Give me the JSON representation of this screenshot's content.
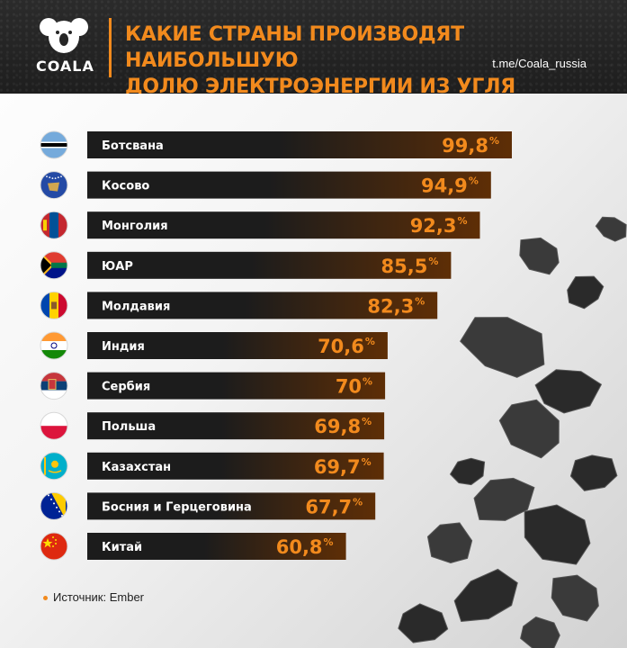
{
  "header": {
    "logo_text": "COALA",
    "title_line1": "КАКИЕ СТРАНЫ ПРОИЗВОДЯТ НАИБОЛЬШУЮ",
    "title_line2": "ДОЛЮ ЭЛЕКТРОЭНЕРГИИ ИЗ УГЛЯ",
    "handle": "t.me/Coala_russia"
  },
  "footer": {
    "source": "Источник: Ember"
  },
  "colors": {
    "accent": "#f28a1d",
    "bar_dark": "#1c1c1c",
    "bar_brown": "#5e2e06",
    "header_bg": "#242424"
  },
  "chart_data": {
    "type": "bar",
    "orientation": "horizontal",
    "unit_suffix": "%",
    "categories": [
      "Ботсвана",
      "Косово",
      "Монголия",
      "ЮАР",
      "Молдавия",
      "Индия",
      "Сербия",
      "Польша",
      "Казахстан",
      "Босния и Герцеговина",
      "Китай"
    ],
    "values": [
      99.8,
      94.9,
      92.3,
      85.5,
      82.3,
      70.6,
      70,
      69.8,
      69.7,
      67.7,
      60.8
    ],
    "value_labels": [
      "99,8",
      "94,9",
      "92,3",
      "85,5",
      "82,3",
      "70,6",
      "70",
      "69,8",
      "69,7",
      "67,7",
      "60,8"
    ],
    "flags": [
      "botswana-flag-icon",
      "kosovo-flag-icon",
      "mongolia-flag-icon",
      "south-africa-flag-icon",
      "moldova-flag-icon",
      "india-flag-icon",
      "serbia-flag-icon",
      "poland-flag-icon",
      "kazakhstan-flag-icon",
      "bosnia-flag-icon",
      "china-flag-icon"
    ],
    "xlim": [
      0,
      100
    ],
    "grid": false,
    "legend": "none"
  }
}
